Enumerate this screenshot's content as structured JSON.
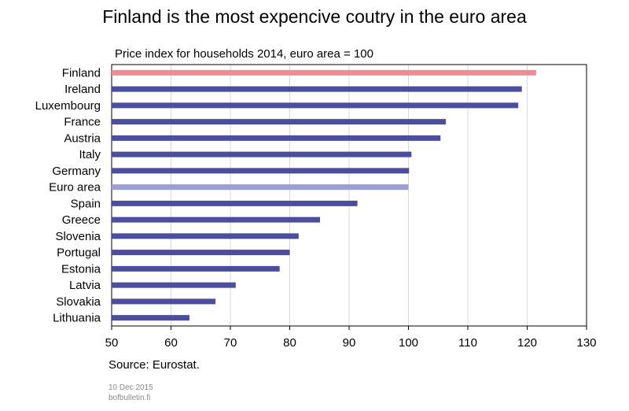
{
  "header": {
    "title": "Finland is the most expencive coutry in the euro area",
    "subtitle": "Price index for households 2014, euro area = 100"
  },
  "footer": {
    "source": "Source: Eurostat.",
    "date": "10 Dec 2015",
    "site": "bofbulletin.fi"
  },
  "colors": {
    "bar": "#4a4e9c",
    "highlight_finland": "#ee8c94",
    "highlight_euro_area": "#9b9fd3",
    "grid": "#d9d9d9",
    "axis": "#000000"
  },
  "chart_data": {
    "type": "bar",
    "orientation": "horizontal",
    "title": "Finland is the most expencive coutry in the euro area",
    "subtitle": "Price index for households 2014, euro area = 100",
    "categories": [
      "Finland",
      "Ireland",
      "Luxembourg",
      "France",
      "Austria",
      "Italy",
      "Germany",
      "Euro area",
      "Spain",
      "Greece",
      "Slovenia",
      "Portugal",
      "Estonia",
      "Latvia",
      "Slovakia",
      "Lithuania"
    ],
    "values": [
      121.5,
      119.1,
      118.5,
      106.3,
      105.4,
      100.5,
      100.1,
      100.0,
      91.4,
      85.1,
      81.5,
      80.0,
      78.3,
      70.9,
      67.5,
      63.1
    ],
    "highlight": {
      "Finland": "#ee8c94",
      "Euro area": "#9b9fd3"
    },
    "xlim": [
      50,
      130
    ],
    "xticks": [
      50,
      60,
      70,
      80,
      90,
      100,
      110,
      120,
      130
    ],
    "grid": true,
    "legend": "none"
  }
}
